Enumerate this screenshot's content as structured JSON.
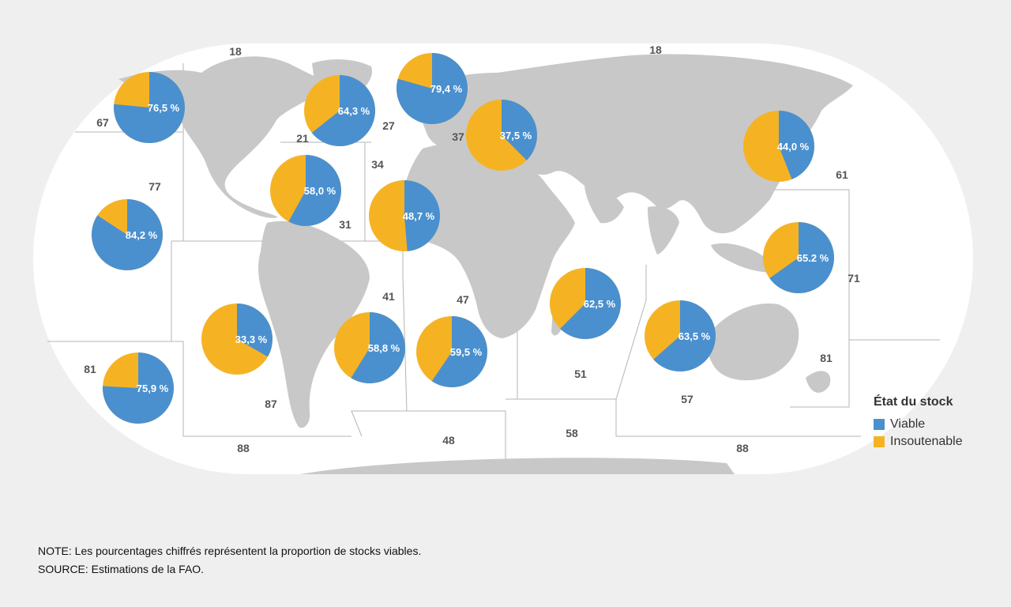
{
  "colors": {
    "viable": "#4a90cf",
    "unsustainable": "#f5b324",
    "land": "#c8c8c8",
    "ocean": "#ffffff",
    "border": "#b4b4b4"
  },
  "legend": {
    "title": "État du stock",
    "items": [
      {
        "label": "Viable",
        "color": "#4a90cf"
      },
      {
        "label": "Insoutenable",
        "color": "#f5b324"
      }
    ]
  },
  "notes": {
    "note": "NOTE: Les pourcentages chiffrés représentent la proportion de stocks viables.",
    "source": "SOURCE: Estimations de la FAO."
  },
  "fishing_areas": [
    {
      "area": "18",
      "viable_pct": null
    },
    {
      "area": "21",
      "viable_pct": 64.3,
      "label": "64,3 %"
    },
    {
      "area": "27",
      "viable_pct": 79.4,
      "label": "79,4 %"
    },
    {
      "area": "31",
      "viable_pct": 58.0,
      "label": "58,0 %"
    },
    {
      "area": "34",
      "viable_pct": 48.7,
      "label": "48,7 %"
    },
    {
      "area": "37",
      "viable_pct": 37.5,
      "label": "37,5 %"
    },
    {
      "area": "41",
      "viable_pct": 58.8,
      "label": "58,8 %"
    },
    {
      "area": "47",
      "viable_pct": 59.5,
      "label": "59,5 %"
    },
    {
      "area": "48",
      "viable_pct": null
    },
    {
      "area": "51",
      "viable_pct": 62.5,
      "label": "62,5 %"
    },
    {
      "area": "57",
      "viable_pct": 63.5,
      "label": "63,5 %"
    },
    {
      "area": "58",
      "viable_pct": null
    },
    {
      "area": "61",
      "viable_pct": 44.0,
      "label": "44,0 %"
    },
    {
      "area": "67",
      "viable_pct": 76.5,
      "label": "76,5 %"
    },
    {
      "area": "71",
      "viable_pct": 65.2,
      "label": "65.2 %"
    },
    {
      "area": "77",
      "viable_pct": 84.2,
      "label": "84,2 %"
    },
    {
      "area": "81",
      "viable_pct": 75.9,
      "label": "75,9 %"
    },
    {
      "area": "87",
      "viable_pct": 33.3,
      "label": "33,3 %"
    },
    {
      "area": "88",
      "viable_pct": null
    }
  ]
}
